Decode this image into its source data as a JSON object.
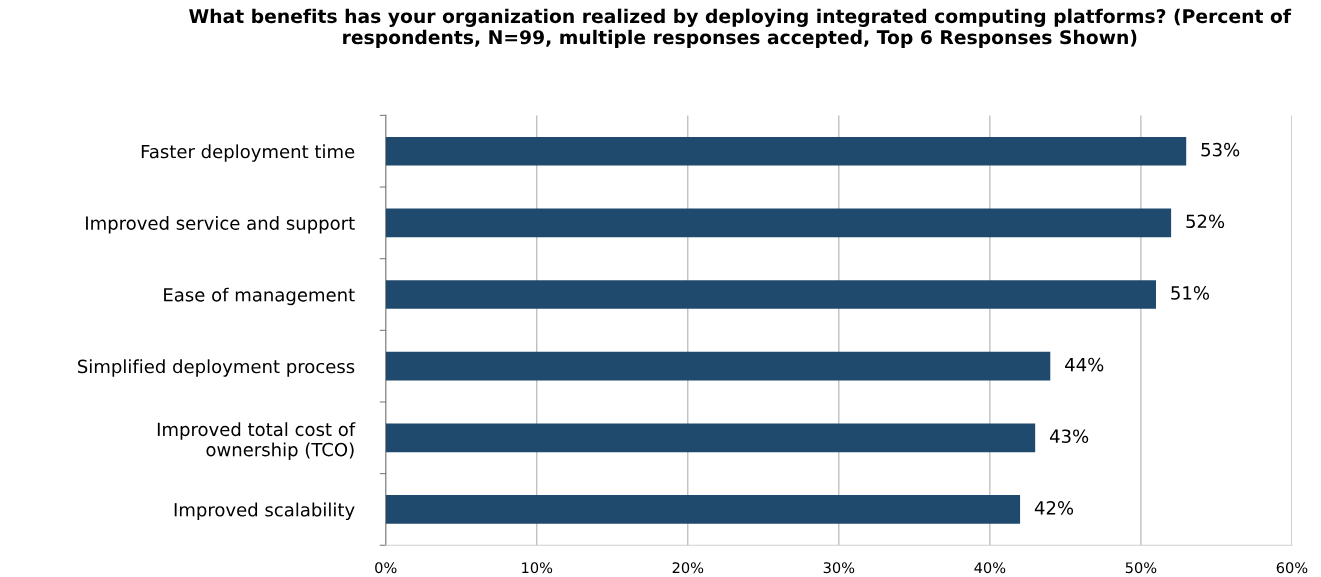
{
  "chart_data": {
    "type": "bar",
    "orientation": "horizontal",
    "title": "What benefits has your organization realized by deploying integrated computing platforms? (Percent of respondents, N=99, multiple responses accepted, Top 6 Responses Shown)",
    "categories": [
      "Faster deployment time",
      "Improved service and support",
      "Ease of management",
      "Simplified deployment process",
      "Improved total cost of\nownership (TCO)",
      "Improved scalability"
    ],
    "values": [
      53,
      52,
      51,
      44,
      43,
      42
    ],
    "value_labels": [
      "53%",
      "52%",
      "51%",
      "44%",
      "43%",
      "42%"
    ],
    "color": "#1f4a6e",
    "xlim": [
      0,
      60
    ],
    "xticks": [
      {
        "value": 0,
        "label": "0%"
      },
      {
        "value": 10,
        "label": "10%"
      },
      {
        "value": 20,
        "label": "20%"
      },
      {
        "value": 30,
        "label": "30%"
      },
      {
        "value": 40,
        "label": "40%"
      },
      {
        "value": 50,
        "label": "50%"
      },
      {
        "value": 60,
        "label": "60%"
      }
    ],
    "grid": "x"
  }
}
